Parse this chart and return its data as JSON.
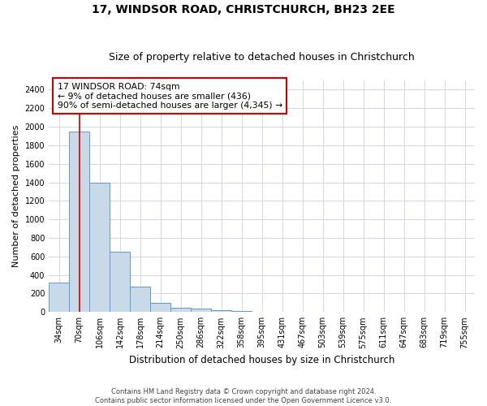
{
  "title": "17, WINDSOR ROAD, CHRISTCHURCH, BH23 2EE",
  "subtitle": "Size of property relative to detached houses in Christchurch",
  "xlabel": "Distribution of detached houses by size in Christchurch",
  "ylabel": "Number of detached properties",
  "bin_labels": [
    "34sqm",
    "70sqm",
    "106sqm",
    "142sqm",
    "178sqm",
    "214sqm",
    "250sqm",
    "286sqm",
    "322sqm",
    "358sqm",
    "395sqm",
    "431sqm",
    "467sqm",
    "503sqm",
    "539sqm",
    "575sqm",
    "611sqm",
    "647sqm",
    "683sqm",
    "719sqm",
    "755sqm"
  ],
  "bar_heights": [
    320,
    1950,
    1400,
    650,
    275,
    100,
    45,
    35,
    20,
    15,
    0,
    0,
    0,
    0,
    0,
    0,
    0,
    0,
    0,
    0,
    0
  ],
  "bar_color": "#c9d9e8",
  "bar_edge_color": "#5b9bd5",
  "grid_color": "#d0d8e8",
  "vline_color": "#cc0000",
  "annotation_text": "17 WINDSOR ROAD: 74sqm\n← 9% of detached houses are smaller (436)\n90% of semi-detached houses are larger (4,345) →",
  "annotation_box_color": "#cc0000",
  "ylim": [
    0,
    2500
  ],
  "yticks": [
    0,
    200,
    400,
    600,
    800,
    1000,
    1200,
    1400,
    1600,
    1800,
    2000,
    2200,
    2400
  ],
  "footer": "Contains HM Land Registry data © Crown copyright and database right 2024.\nContains public sector information licensed under the Open Government Licence v3.0.",
  "title_fontsize": 10,
  "subtitle_fontsize": 9,
  "ylabel_fontsize": 8,
  "xlabel_fontsize": 8.5,
  "tick_fontsize": 7,
  "annotation_fontsize": 7.8,
  "footer_fontsize": 6
}
